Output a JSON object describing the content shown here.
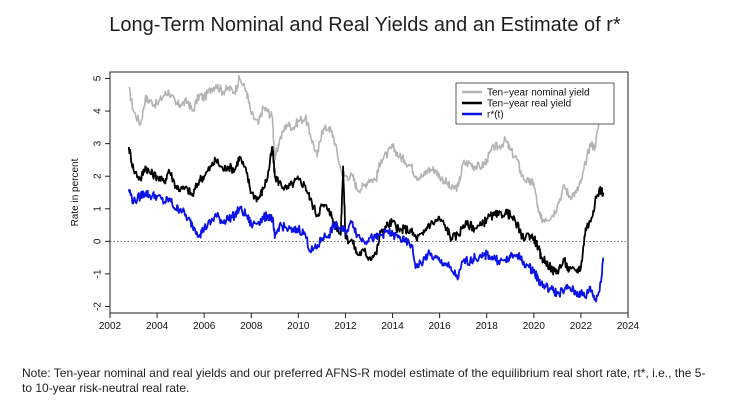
{
  "title": "Long-Term Nominal and Real Yields and an Estimate of r*",
  "note": "Note: Ten-year nominal and real yields and our preferred AFNS-R model estimate of the equilibrium real short rate, rt*, i.e., the 5- to 10-year risk-neutral real rate.",
  "chart_data": {
    "type": "line",
    "title": "Long-Term Nominal and Real Yields and an Estimate of r*",
    "xlabel": "",
    "ylabel": "Rate in percent",
    "xlim": [
      2002,
      2024
    ],
    "ylim": [
      -2.2,
      5.2
    ],
    "xticks": [
      2002,
      2004,
      2006,
      2008,
      2010,
      2012,
      2014,
      2016,
      2018,
      2020,
      2022,
      2024
    ],
    "yticks": [
      -2,
      -1,
      0,
      1,
      2,
      3,
      4,
      5
    ],
    "zero_line": true,
    "legend_position": "top-right",
    "series": [
      {
        "name": "Ten−year nominal yield",
        "color": "#b4b4b4",
        "x": [
          2002.8,
          2003.0,
          2003.3,
          2003.5,
          2003.7,
          2004.0,
          2004.3,
          2004.5,
          2004.8,
          2005.0,
          2005.3,
          2005.5,
          2005.8,
          2006.0,
          2006.3,
          2006.5,
          2006.8,
          2007.0,
          2007.3,
          2007.5,
          2007.8,
          2008.0,
          2008.3,
          2008.5,
          2008.7,
          2008.9,
          2009.0,
          2009.2,
          2009.5,
          2009.8,
          2010.0,
          2010.3,
          2010.5,
          2010.8,
          2011.0,
          2011.3,
          2011.5,
          2011.8,
          2012.0,
          2012.3,
          2012.5,
          2012.8,
          2013.0,
          2013.3,
          2013.5,
          2013.8,
          2014.0,
          2014.3,
          2014.5,
          2014.8,
          2015.0,
          2015.3,
          2015.5,
          2015.8,
          2016.0,
          2016.3,
          2016.5,
          2016.8,
          2017.0,
          2017.3,
          2017.5,
          2017.8,
          2018.0,
          2018.3,
          2018.5,
          2018.8,
          2019.0,
          2019.3,
          2019.5,
          2019.8,
          2020.0,
          2020.2,
          2020.3,
          2020.5,
          2020.8,
          2021.0,
          2021.3,
          2021.5,
          2021.8,
          2022.0,
          2022.2,
          2022.4,
          2022.6,
          2022.8,
          2022.95
        ],
        "values": [
          4.7,
          4.0,
          3.6,
          4.4,
          4.3,
          4.2,
          4.5,
          4.6,
          4.2,
          4.2,
          4.3,
          4.0,
          4.5,
          4.4,
          4.7,
          4.8,
          4.6,
          4.7,
          4.6,
          5.0,
          4.6,
          3.9,
          3.6,
          4.1,
          4.0,
          3.8,
          2.5,
          3.1,
          3.6,
          3.5,
          3.7,
          3.8,
          3.3,
          2.6,
          3.4,
          3.5,
          3.2,
          2.2,
          2.0,
          2.0,
          1.6,
          1.7,
          1.9,
          1.9,
          2.5,
          2.7,
          2.9,
          2.6,
          2.5,
          2.3,
          2.0,
          2.0,
          2.2,
          2.2,
          2.0,
          1.8,
          1.6,
          1.7,
          2.4,
          2.4,
          2.3,
          2.3,
          2.5,
          2.9,
          2.9,
          3.1,
          2.8,
          2.5,
          2.0,
          1.8,
          1.8,
          0.9,
          0.7,
          0.7,
          0.8,
          1.1,
          1.7,
          1.4,
          1.5,
          1.8,
          2.4,
          3.0,
          2.9,
          3.8,
          3.9
        ]
      },
      {
        "name": "Ten−year real yield",
        "color": "#000000",
        "x": [
          2002.8,
          2003.0,
          2003.3,
          2003.5,
          2003.7,
          2004.0,
          2004.3,
          2004.5,
          2004.8,
          2005.0,
          2005.3,
          2005.5,
          2005.8,
          2006.0,
          2006.3,
          2006.5,
          2006.8,
          2007.0,
          2007.3,
          2007.5,
          2007.8,
          2008.0,
          2008.3,
          2008.5,
          2008.7,
          2008.9,
          2009.0,
          2009.2,
          2009.5,
          2009.8,
          2010.0,
          2010.3,
          2010.5,
          2010.8,
          2011.0,
          2011.3,
          2011.5,
          2011.8,
          2011.9,
          2012.0,
          2012.3,
          2012.5,
          2012.8,
          2013.0,
          2013.3,
          2013.5,
          2013.8,
          2014.0,
          2014.3,
          2014.5,
          2014.8,
          2015.0,
          2015.3,
          2015.5,
          2015.8,
          2016.0,
          2016.3,
          2016.5,
          2016.8,
          2017.0,
          2017.3,
          2017.5,
          2017.8,
          2018.0,
          2018.3,
          2018.5,
          2018.8,
          2019.0,
          2019.3,
          2019.5,
          2019.8,
          2020.0,
          2020.2,
          2020.3,
          2020.5,
          2020.8,
          2021.0,
          2021.3,
          2021.5,
          2021.8,
          2022.0,
          2022.2,
          2022.4,
          2022.6,
          2022.8,
          2022.95
        ],
        "values": [
          2.9,
          2.2,
          1.9,
          2.3,
          2.1,
          2.0,
          1.8,
          2.2,
          1.7,
          1.6,
          1.6,
          1.4,
          1.9,
          2.0,
          2.3,
          2.5,
          2.2,
          2.3,
          2.2,
          2.6,
          2.1,
          1.5,
          1.3,
          1.6,
          2.0,
          2.9,
          2.0,
          1.8,
          1.6,
          1.8,
          1.9,
          1.7,
          1.3,
          0.8,
          1.1,
          1.0,
          0.6,
          0.2,
          2.3,
          0.1,
          0.0,
          -0.4,
          -0.3,
          -0.5,
          -0.4,
          0.3,
          0.5,
          0.6,
          0.3,
          0.4,
          0.3,
          0.1,
          0.2,
          0.5,
          0.6,
          0.7,
          0.4,
          0.1,
          0.2,
          0.5,
          0.5,
          0.4,
          0.5,
          0.7,
          0.8,
          0.8,
          0.9,
          0.8,
          0.5,
          0.1,
          0.2,
          0.1,
          -0.2,
          -0.5,
          -0.6,
          -0.9,
          -0.9,
          -0.6,
          -0.9,
          -0.9,
          -0.8,
          0.4,
          0.6,
          1.2,
          1.6,
          1.5
        ]
      },
      {
        "name": "r*(t)",
        "color": "#0b12e6",
        "x": [
          2002.8,
          2003.0,
          2003.3,
          2003.5,
          2003.7,
          2004.0,
          2004.3,
          2004.5,
          2004.8,
          2005.0,
          2005.3,
          2005.5,
          2005.8,
          2006.0,
          2006.3,
          2006.5,
          2006.8,
          2007.0,
          2007.3,
          2007.5,
          2007.8,
          2008.0,
          2008.3,
          2008.5,
          2008.7,
          2008.9,
          2009.0,
          2009.2,
          2009.5,
          2009.8,
          2010.0,
          2010.3,
          2010.5,
          2010.8,
          2011.0,
          2011.3,
          2011.5,
          2011.8,
          2012.0,
          2012.3,
          2012.5,
          2012.8,
          2013.0,
          2013.3,
          2013.5,
          2013.8,
          2014.0,
          2014.3,
          2014.5,
          2014.8,
          2015.0,
          2015.3,
          2015.5,
          2015.8,
          2016.0,
          2016.3,
          2016.5,
          2016.8,
          2017.0,
          2017.3,
          2017.5,
          2017.8,
          2018.0,
          2018.3,
          2018.5,
          2018.8,
          2019.0,
          2019.3,
          2019.5,
          2019.8,
          2020.0,
          2020.2,
          2020.3,
          2020.5,
          2020.8,
          2021.0,
          2021.3,
          2021.5,
          2021.8,
          2022.0,
          2022.2,
          2022.4,
          2022.6,
          2022.8,
          2022.95
        ],
        "values": [
          1.6,
          1.2,
          1.4,
          1.5,
          1.4,
          1.4,
          1.2,
          1.3,
          1.0,
          1.0,
          0.7,
          0.5,
          0.2,
          0.4,
          0.6,
          0.8,
          0.6,
          0.7,
          0.8,
          1.0,
          0.8,
          0.5,
          0.6,
          0.7,
          0.8,
          0.7,
          0.1,
          0.5,
          0.4,
          0.3,
          0.4,
          0.2,
          -0.3,
          -0.2,
          0.1,
          0.2,
          0.5,
          0.4,
          0.3,
          0.6,
          0.2,
          0.0,
          0.1,
          0.1,
          0.2,
          0.3,
          0.2,
          0.1,
          0.0,
          -0.1,
          -0.8,
          -0.6,
          -0.4,
          -0.5,
          -0.6,
          -0.7,
          -0.9,
          -1.1,
          -0.6,
          -0.6,
          -0.5,
          -0.5,
          -0.4,
          -0.5,
          -0.6,
          -0.6,
          -0.5,
          -0.4,
          -0.6,
          -0.8,
          -0.9,
          -1.2,
          -1.3,
          -1.4,
          -1.5,
          -1.6,
          -1.5,
          -1.4,
          -1.6,
          -1.6,
          -1.7,
          -1.4,
          -1.8,
          -1.5,
          -0.5
        ]
      }
    ]
  }
}
